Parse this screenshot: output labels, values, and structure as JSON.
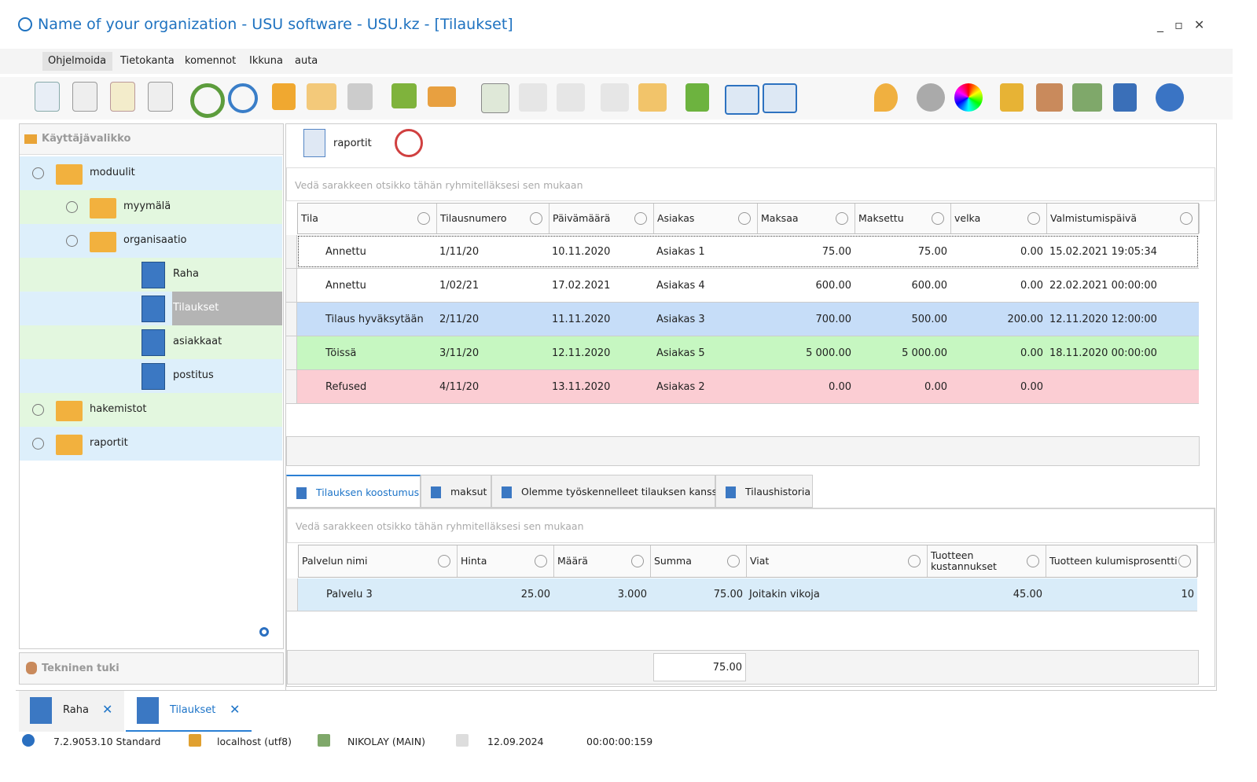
{
  "window": {
    "title": "Name of your organization - USU software - USU.kz - [Tilaukset]"
  },
  "menu": [
    "Ohjelmoida",
    "Tietokanta",
    "komennot",
    "Ikkuna",
    "auta"
  ],
  "sidebar": {
    "title": "Käyttäjävalikko",
    "tree": [
      {
        "label": "moduulit",
        "level": 0,
        "icon": "folder-open",
        "expander": "open"
      },
      {
        "label": "myymälä",
        "level": 1,
        "icon": "folder",
        "expander": "closed"
      },
      {
        "label": "organisaatio",
        "level": 1,
        "icon": "folder-open",
        "expander": "open"
      },
      {
        "label": "Raha",
        "level": 2,
        "icon": "book"
      },
      {
        "label": "Tilaukset",
        "level": 2,
        "icon": "book",
        "selected": true
      },
      {
        "label": "asiakkaat",
        "level": 2,
        "icon": "book"
      },
      {
        "label": "postitus",
        "level": 2,
        "icon": "book"
      },
      {
        "label": "hakemistot",
        "level": 0,
        "icon": "folder",
        "expander": "closed"
      },
      {
        "label": "raportit",
        "level": 0,
        "icon": "folder",
        "expander": "closed"
      }
    ],
    "footer_title": "Tekninen tuki"
  },
  "report_toolbar": {
    "label": "raportit"
  },
  "orders": {
    "group_hint": "Vedä sarakkeen otsikko tähän ryhmitelläksesi sen mukaan",
    "columns": [
      "Tila",
      "Tilausnumero",
      "Päivämäärä",
      "Asiakas",
      "Maksaa",
      "Maksettu",
      "velka",
      "Valmistumispäivä"
    ],
    "rows": [
      [
        "Annettu",
        "1/11/20",
        "10.11.2020",
        "Asiakas 1",
        "75.00",
        "75.00",
        "0.00",
        "15.02.2021 19:05:34"
      ],
      [
        "Annettu",
        "1/02/21",
        "17.02.2021",
        "Asiakas 4",
        "600.00",
        "600.00",
        "0.00",
        "22.02.2021 00:00:00"
      ],
      [
        "Tilaus hyväksytään",
        "2/11/20",
        "11.11.2020",
        "Asiakas 3",
        "700.00",
        "500.00",
        "200.00",
        "12.11.2020 12:00:00"
      ],
      [
        "Töissä",
        "3/11/20",
        "12.11.2020",
        "Asiakas 5",
        "5 000.00",
        "5 000.00",
        "0.00",
        "18.11.2020 00:00:00"
      ],
      [
        "Refused",
        "4/11/20",
        "13.11.2020",
        "Asiakas 2",
        "0.00",
        "0.00",
        "0.00",
        null
      ]
    ],
    "row_colors": [
      "#ffffff",
      "#ffffff",
      "#c6ddf8",
      "#c6f7c1",
      "#fbcdd3"
    ]
  },
  "tabs": [
    "Tilauksen koostumus",
    "maksut",
    "Olemme työskennelleet tilauksen kanssa",
    "Tilaushistoria"
  ],
  "details": {
    "group_hint": "Vedä sarakkeen otsikko tähän ryhmitelläksesi sen mukaan",
    "columns": [
      "Palvelun nimi",
      "Hinta",
      "Määrä",
      "Summa",
      "Viat",
      "Tuotteen kustannukset",
      "Tuotteen kulumisprosentti"
    ],
    "rows": [
      [
        "Palvelu 3",
        "25.00",
        "3.000",
        "75.00",
        "Joitakin vikoja",
        "45.00",
        "10"
      ]
    ],
    "total": "75.00"
  },
  "doc_tabs": [
    "Raha",
    "Tilaukset"
  ],
  "status": [
    "7.2.9053.10 Standard",
    "localhost (utf8)",
    "NIKOLAY (MAIN)",
    "12.09.2024",
    "00:00:00:159"
  ]
}
